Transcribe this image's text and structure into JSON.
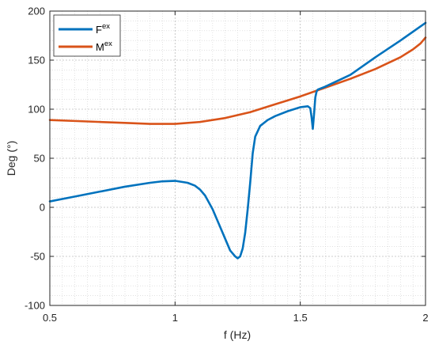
{
  "chart_data": {
    "type": "line",
    "xlabel": "f (Hz)",
    "ylabel": "Deg (°)",
    "xlim": [
      0.5,
      2
    ],
    "ylim": [
      -100,
      200
    ],
    "x_ticks": [
      "0.5",
      "1",
      "1.5",
      "2"
    ],
    "y_ticks": [
      "-100",
      "-50",
      "0",
      "50",
      "100",
      "150",
      "200"
    ],
    "grid": "major and minor, dotted",
    "legend_position": "top-left",
    "series": [
      {
        "name": "F^ex",
        "label_base": "F",
        "label_sup": "ex",
        "color": "#0072BD",
        "x": [
          0.5,
          0.6,
          0.7,
          0.8,
          0.9,
          0.95,
          1.0,
          1.05,
          1.08,
          1.1,
          1.12,
          1.15,
          1.18,
          1.2,
          1.22,
          1.24,
          1.25,
          1.26,
          1.27,
          1.28,
          1.29,
          1.3,
          1.31,
          1.32,
          1.34,
          1.37,
          1.4,
          1.45,
          1.5,
          1.53,
          1.54,
          1.545,
          1.55,
          1.555,
          1.56,
          1.565,
          1.57,
          1.6,
          1.7,
          1.8,
          1.9,
          2.0
        ],
        "y": [
          6,
          11,
          16,
          21,
          25,
          26.5,
          27,
          25,
          22,
          18,
          12,
          -2,
          -20,
          -32,
          -44,
          -50,
          -52,
          -50,
          -42,
          -26,
          -2,
          25,
          55,
          72,
          83,
          89,
          93,
          98,
          102,
          103,
          101,
          92,
          80,
          95,
          112,
          118,
          120,
          123,
          135,
          153,
          170,
          188
        ]
      },
      {
        "name": "M^ex",
        "label_base": "M",
        "label_sup": "ex",
        "color": "#D95319",
        "x": [
          0.5,
          0.6,
          0.7,
          0.8,
          0.9,
          1.0,
          1.1,
          1.2,
          1.3,
          1.4,
          1.5,
          1.6,
          1.7,
          1.8,
          1.9,
          1.95,
          1.98,
          2.0
        ],
        "y": [
          89,
          88,
          87,
          86,
          85,
          85,
          87,
          91,
          97,
          105,
          113,
          122,
          131,
          141,
          153,
          161,
          167,
          173
        ]
      }
    ]
  }
}
